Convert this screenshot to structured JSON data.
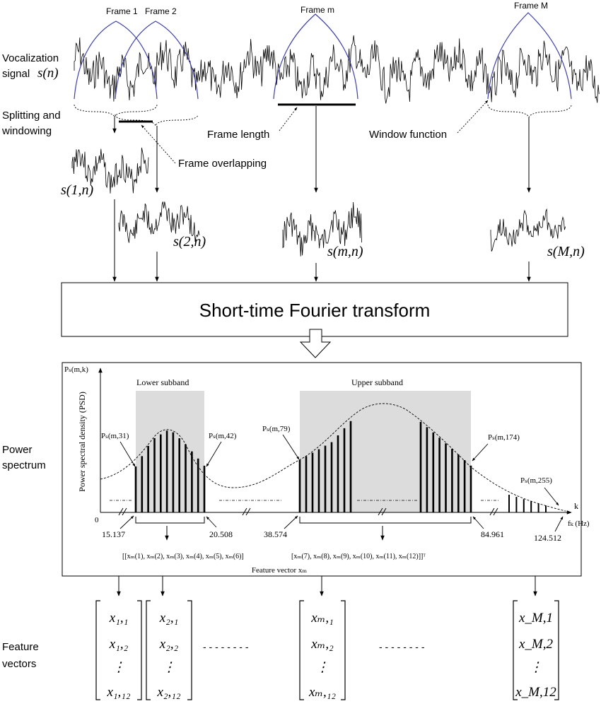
{
  "top": {
    "frame_labels": [
      "Frame 1",
      "Frame 2",
      "Frame m",
      "Frame M"
    ],
    "vocalization_label": [
      "Vocalization",
      "signal"
    ],
    "signal_symbol": "s(n)",
    "splitting_label": [
      "Splitting and",
      "windowing"
    ],
    "frame_length": "Frame length",
    "window_function": "Window function",
    "frame_overlapping": "Frame overlapping",
    "frames": [
      "s(1,n)",
      "s(2,n)",
      "s(m,n)",
      "s(M,n)"
    ]
  },
  "stft": {
    "label": "Short-time Fourier transform"
  },
  "spectrum": {
    "side_label": [
      "Power",
      "spectrum"
    ],
    "y_symbol": "Pₛ(m,k)",
    "y_axis_label": "Power spectral density (PSD)",
    "zero": "0",
    "x_symbol": "k",
    "f_symbol": "fₖ (Hz)",
    "lower_subband": "Lower subband",
    "upper_subband": "Upper subband",
    "points": [
      "Pₛ(m,31)",
      "Pₛ(m,42)",
      "Pₛ(m,79)",
      "Pₛ(m,174)",
      "Pₛ(m,255)"
    ],
    "freqs": [
      "15.137",
      "20.508",
      "38.574",
      "84.961",
      "124.512"
    ],
    "vector_lower": "[[xₘ(1), xₘ(2), xₘ(3), xₘ(4), xₘ(5), xₘ(6)]",
    "vector_upper": "[xₘ(7), xₘ(8), xₘ(9), xₘ(10), xₘ(11), xₘ(12)]]ᵀ",
    "feature_vector_label": "Feature vector xₘ"
  },
  "features": {
    "side_label": [
      "Feature",
      "vectors"
    ],
    "columns": [
      {
        "top": "x₁,₁",
        "mid": "x₁,₂",
        "bottom": "x₁,₁₂"
      },
      {
        "top": "x₂,₁",
        "mid": "x₂,₂",
        "bottom": "x₂,₁₂"
      },
      {
        "top": "xₘ,₁",
        "mid": "xₘ,₂",
        "bottom": "xₘ,₁₂"
      },
      {
        "top": "x_M,1",
        "mid": "x_M,2",
        "bottom": "x_M,12"
      }
    ],
    "dots": "⋮",
    "ellipsis": "- - - - - - - -"
  },
  "colors": {
    "window": "#3b3fa8",
    "subband": "#dcdcdc",
    "ink": "#000000"
  }
}
